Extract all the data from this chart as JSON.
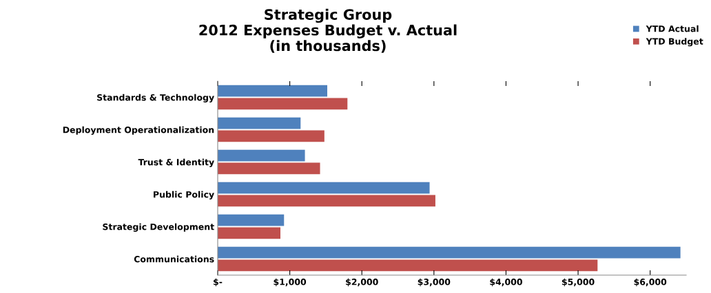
{
  "chart_data": {
    "type": "bar",
    "orientation": "horizontal",
    "title": "Strategic Group\n2012 Expenses Budget v. Actual\n(in thousands)",
    "categories": [
      "Standards & Technology",
      "Deployment Operationalization",
      "Trust & Identity",
      "Public Policy",
      "Strategic Development",
      "Communications"
    ],
    "series": [
      {
        "name": "YTD Actual",
        "color": "#4f81bd",
        "values": [
          1520,
          1150,
          1210,
          2940,
          920,
          6420
        ]
      },
      {
        "name": "YTD Budget",
        "color": "#c0504d",
        "values": [
          1800,
          1480,
          1420,
          3020,
          870,
          5270
        ]
      }
    ],
    "xlim": [
      0,
      6500
    ],
    "xticks": [
      {
        "value": 0,
        "label": "$-"
      },
      {
        "value": 1000,
        "label": "$1,000"
      },
      {
        "value": 2000,
        "label": "$2,000"
      },
      {
        "value": 3000,
        "label": "$3,000"
      },
      {
        "value": 4000,
        "label": "$4,000"
      },
      {
        "value": 5000,
        "label": "$5,000"
      },
      {
        "value": 6000,
        "label": "$6,000"
      }
    ],
    "grid": false,
    "legend": "top right"
  }
}
